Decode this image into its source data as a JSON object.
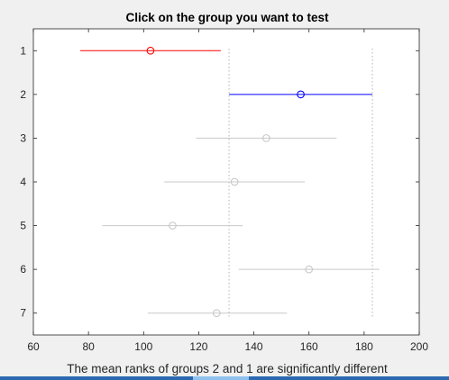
{
  "chart_data": {
    "type": "scatter",
    "title": "Click on the group you want to test",
    "xlabel": "The mean ranks of groups 2 and 1 are significantly different",
    "ylabel": "",
    "xlim": [
      60,
      200
    ],
    "ylim": [
      0.5,
      7.5
    ],
    "x_ticks": [
      "60",
      "80",
      "100",
      "120",
      "140",
      "160",
      "180",
      "200"
    ],
    "y_ticks": [
      "1",
      "2",
      "3",
      "4",
      "5",
      "6",
      "7"
    ],
    "y_reversed": true,
    "grid": false,
    "groups": [
      {
        "label": "1",
        "mean": 102.5,
        "lower": 77,
        "upper": 128,
        "color": "#ff0000",
        "status": "selected"
      },
      {
        "label": "2",
        "mean": 157,
        "lower": 131,
        "upper": 183,
        "color": "#0000ff",
        "status": "significant"
      },
      {
        "label": "3",
        "mean": 144.5,
        "lower": 119,
        "upper": 170,
        "color": "#c8c8c8",
        "status": "other"
      },
      {
        "label": "4",
        "mean": 133,
        "lower": 107.5,
        "upper": 158.5,
        "color": "#c8c8c8",
        "status": "other"
      },
      {
        "label": "5",
        "mean": 110.5,
        "lower": 85,
        "upper": 136,
        "color": "#c8c8c8",
        "status": "other"
      },
      {
        "label": "6",
        "mean": 160,
        "lower": 134.5,
        "upper": 185.5,
        "color": "#c8c8c8",
        "status": "other"
      },
      {
        "label": "7",
        "mean": 126.5,
        "lower": 101.5,
        "upper": 152,
        "color": "#c8c8c8",
        "status": "other"
      }
    ],
    "reference_lines_x": [
      131,
      183
    ]
  },
  "colors": {
    "figure_background": "#f0f0f0",
    "axes_background": "#ffffff",
    "axis_line": "#262626",
    "reference_line": "#b4b4b4",
    "bottom_strip": "#2b6ab3"
  }
}
